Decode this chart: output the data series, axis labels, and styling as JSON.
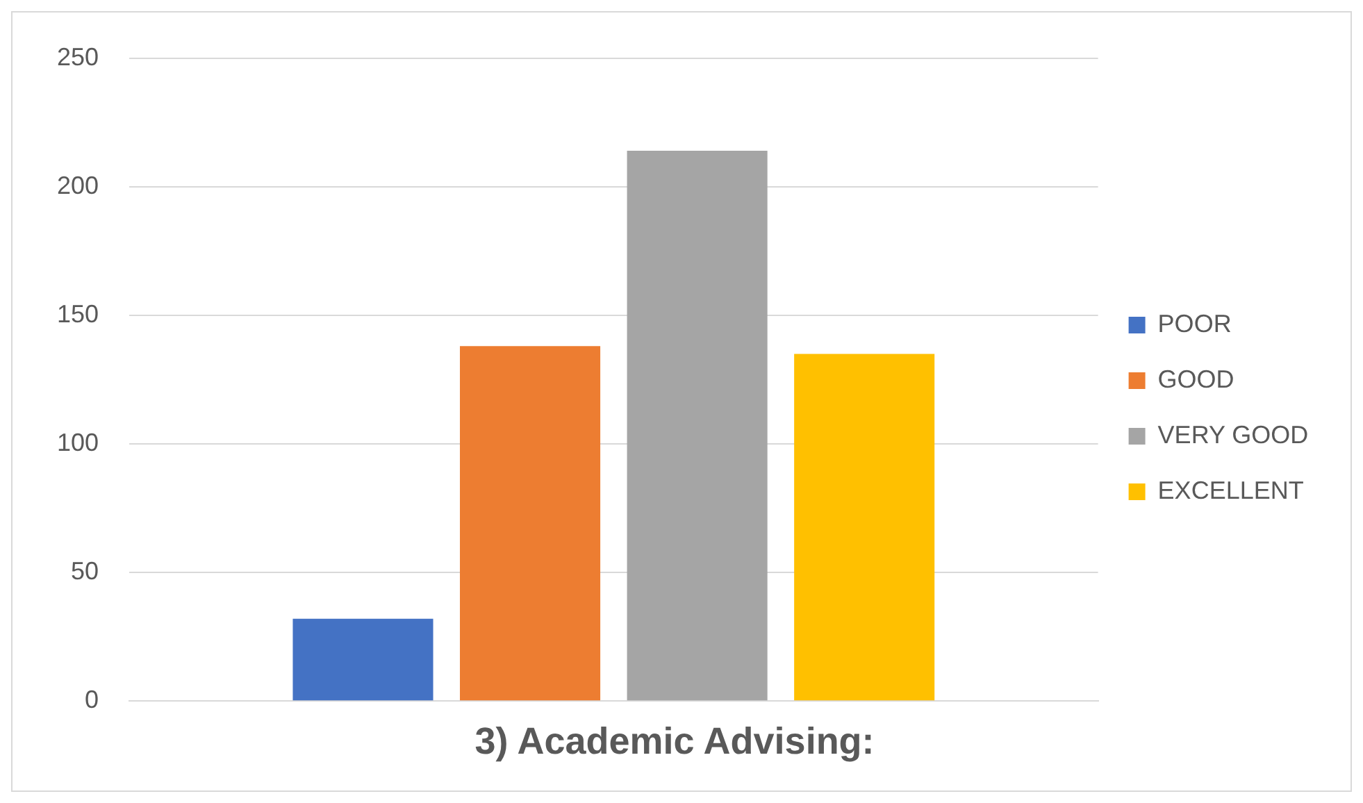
{
  "chart_data": {
    "type": "bar",
    "title": "3) Academic Advising:",
    "categories": [
      null
    ],
    "series": [
      {
        "name": "POOR",
        "color": "#4472c4",
        "values": [
          32
        ]
      },
      {
        "name": "GOOD",
        "color": "#ed7d31",
        "values": [
          138
        ]
      },
      {
        "name": "VERY GOOD",
        "color": "#a5a5a5",
        "values": [
          214
        ]
      },
      {
        "name": "EXCELLENT",
        "color": "#ffc000",
        "values": [
          135
        ]
      }
    ],
    "ylim": [
      0,
      250
    ],
    "yticks": [
      0,
      50,
      100,
      150,
      200,
      250
    ],
    "grid": "y",
    "legend": "right",
    "tick_labels": "y"
  }
}
